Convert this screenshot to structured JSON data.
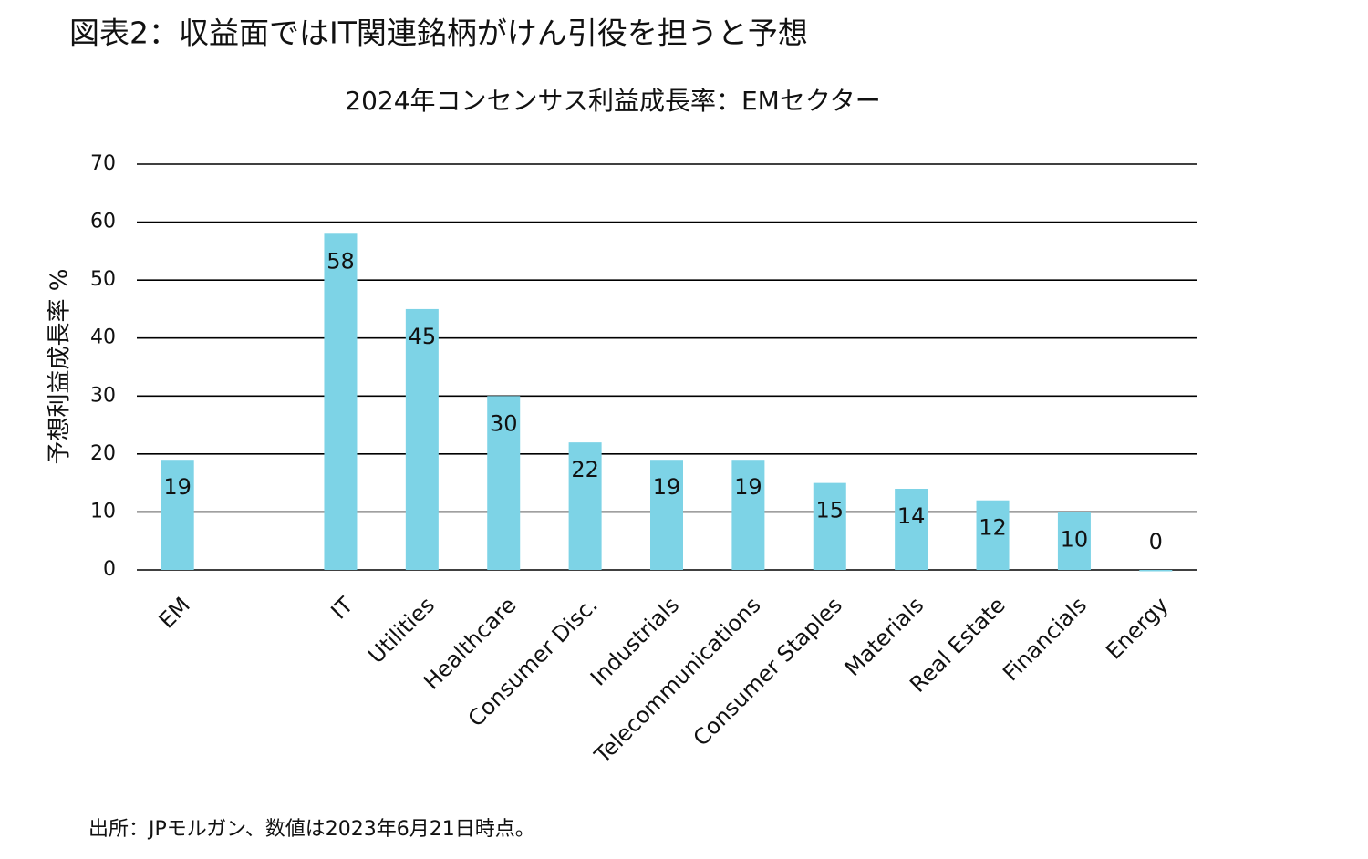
{
  "header": {
    "title": "図表2：収益面ではIT関連銘柄がけん引役を担うと予想"
  },
  "chart_data": {
    "type": "bar",
    "title": "2024年コンセンサス利益成長率：EMセクター",
    "y_label": "予想利益成長率 %",
    "categories": [
      "EM",
      null,
      "IT",
      "Utilities",
      "Healthcare",
      "Consumer Disc.",
      "Industrials",
      "Telecommunications",
      "Consumer Staples",
      "Materials",
      "Real Estate",
      "Financials",
      "Energy"
    ],
    "values": [
      19,
      null,
      58,
      45,
      30,
      22,
      19,
      19,
      15,
      14,
      12,
      10,
      0
    ],
    "color": "#7dd3e6",
    "ylim": [
      0,
      70
    ],
    "yticks": [
      0,
      10,
      20,
      30,
      40,
      50,
      60,
      70
    ],
    "grid": true
  },
  "footer": {
    "source": "出所：JPモルガン、数値は2023年6月21日時点。"
  }
}
